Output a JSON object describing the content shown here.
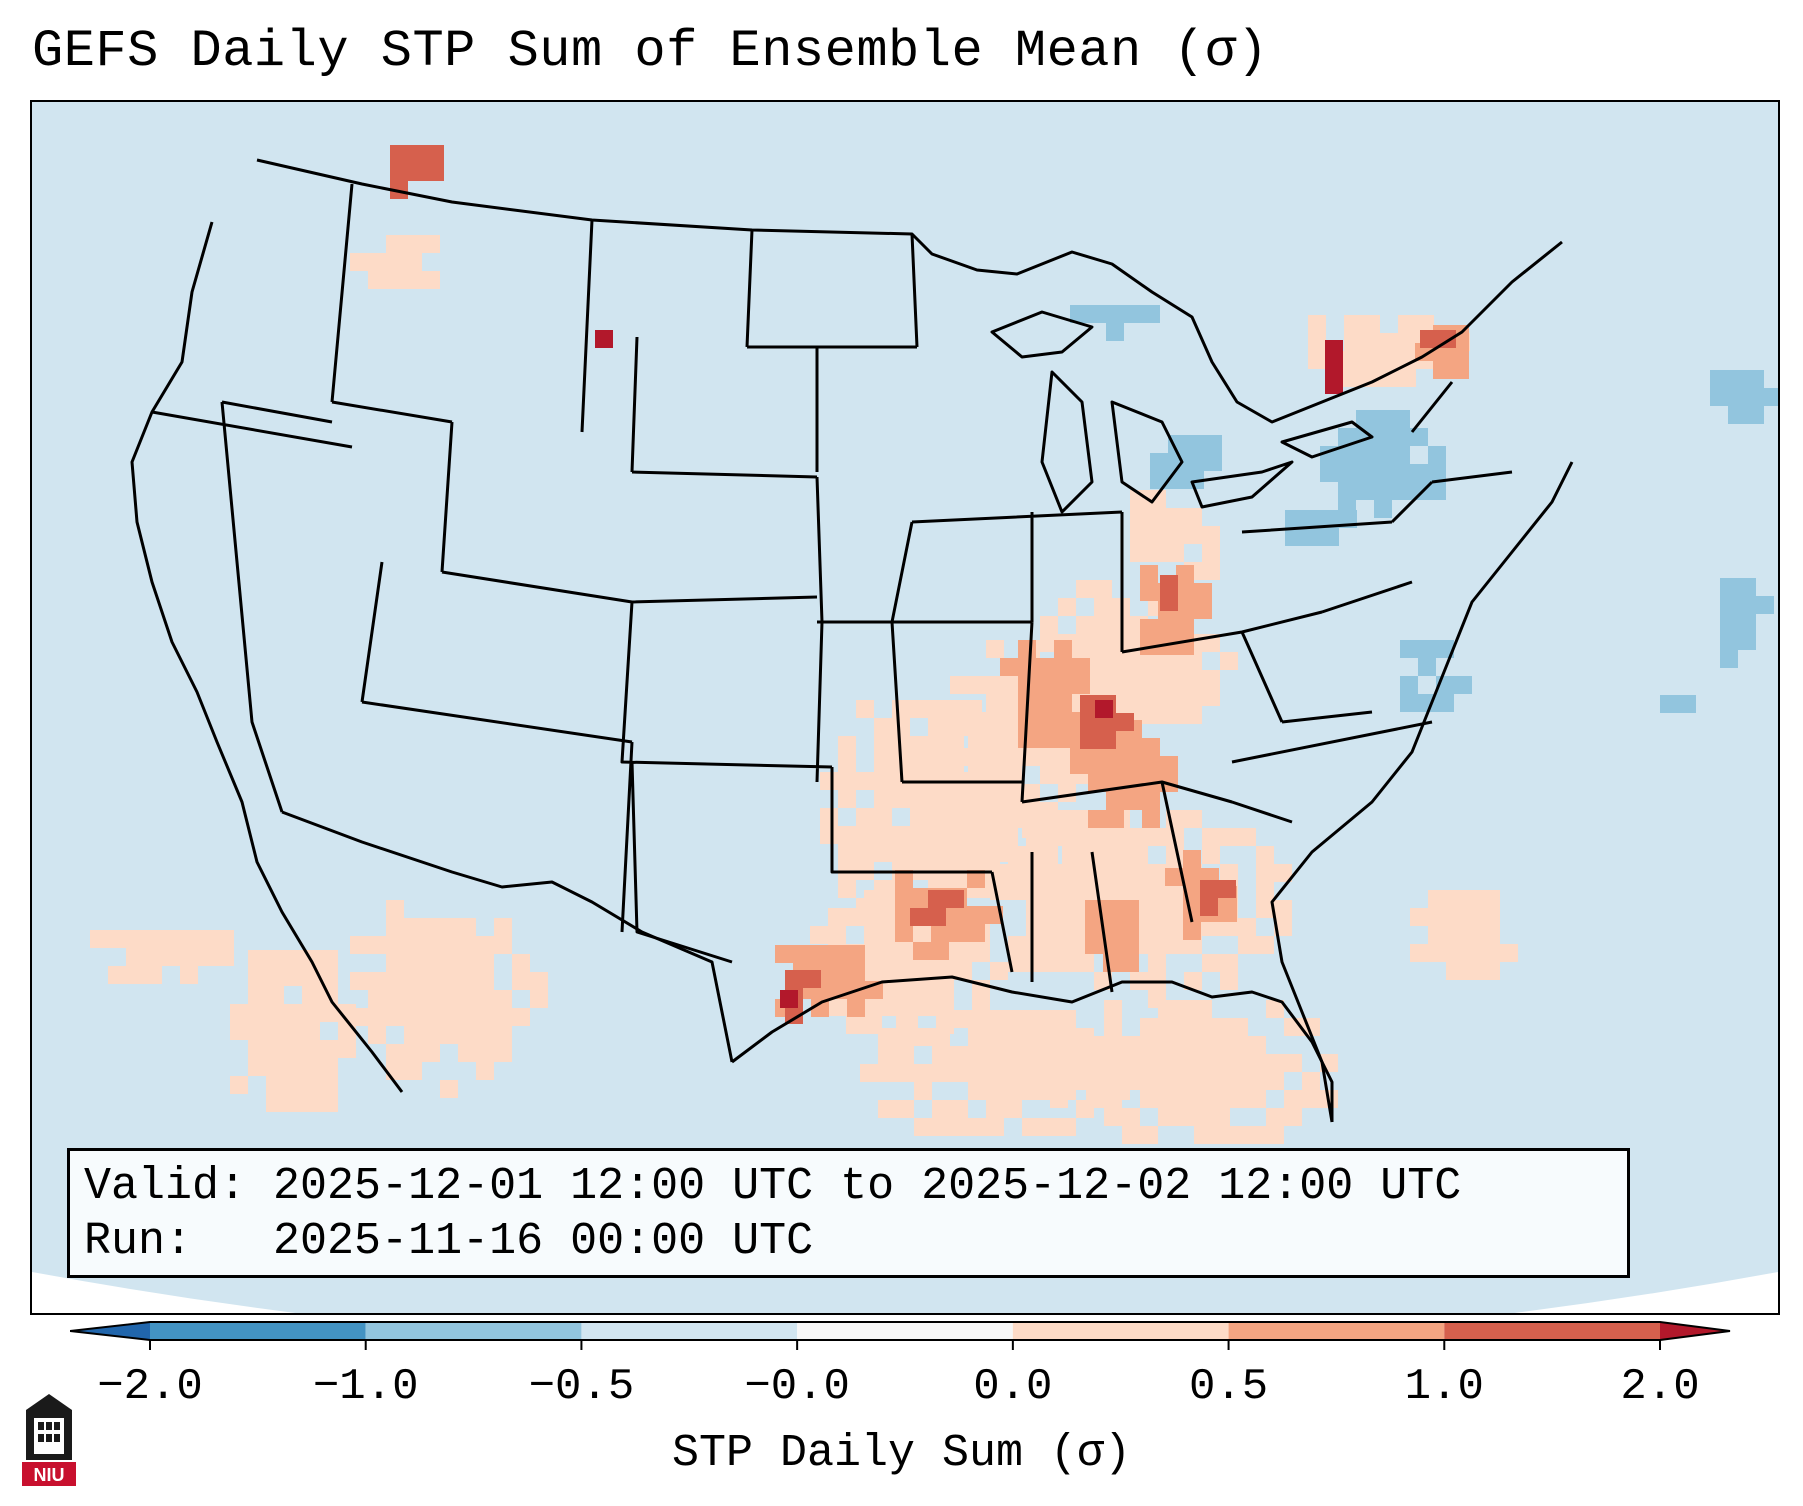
{
  "title": "GEFS Daily STP Sum of Ensemble Mean (σ)",
  "info": {
    "valid_label": "Valid:",
    "valid_value": "2025-12-01 12:00 UTC to 2025-12-02 12:00 UTC",
    "run_label": "Run:",
    "run_value": "2025-11-16 00:00 UTC"
  },
  "colorbar": {
    "label": "STP Daily Sum (σ)",
    "ticks": [
      "−2.0",
      "−1.0",
      "−0.5",
      "−0.0",
      "0.0",
      "0.5",
      "1.0",
      "2.0"
    ],
    "bins": [
      {
        "range": "<-2.0",
        "color": "#2166ac"
      },
      {
        "range": "-2.0 to -1.0",
        "color": "#4393c3"
      },
      {
        "range": "-1.0 to -0.5",
        "color": "#92c5de"
      },
      {
        "range": "-0.5 to -0.0",
        "color": "#d1e5f0"
      },
      {
        "range": "-0.0 to 0.0",
        "color": "#f7f7f7"
      },
      {
        "range": "0.0 to 0.5",
        "color": "#fddbc7"
      },
      {
        "range": "0.5 to 1.0",
        "color": "#f4a582"
      },
      {
        "range": "1.0 to 2.0",
        "color": "#d6604d"
      },
      {
        "range": ">2.0",
        "color": "#b2182b"
      }
    ]
  },
  "map_colors": {
    "background": "#d1e5f0",
    "lt_pos": "#fddbc7",
    "mid_pos": "#f4a582",
    "hi_pos": "#d6604d",
    "max_pos": "#b2182b",
    "lt_neg": "#92c5de",
    "border": "#000000"
  },
  "logo": {
    "text": "NIU"
  }
}
